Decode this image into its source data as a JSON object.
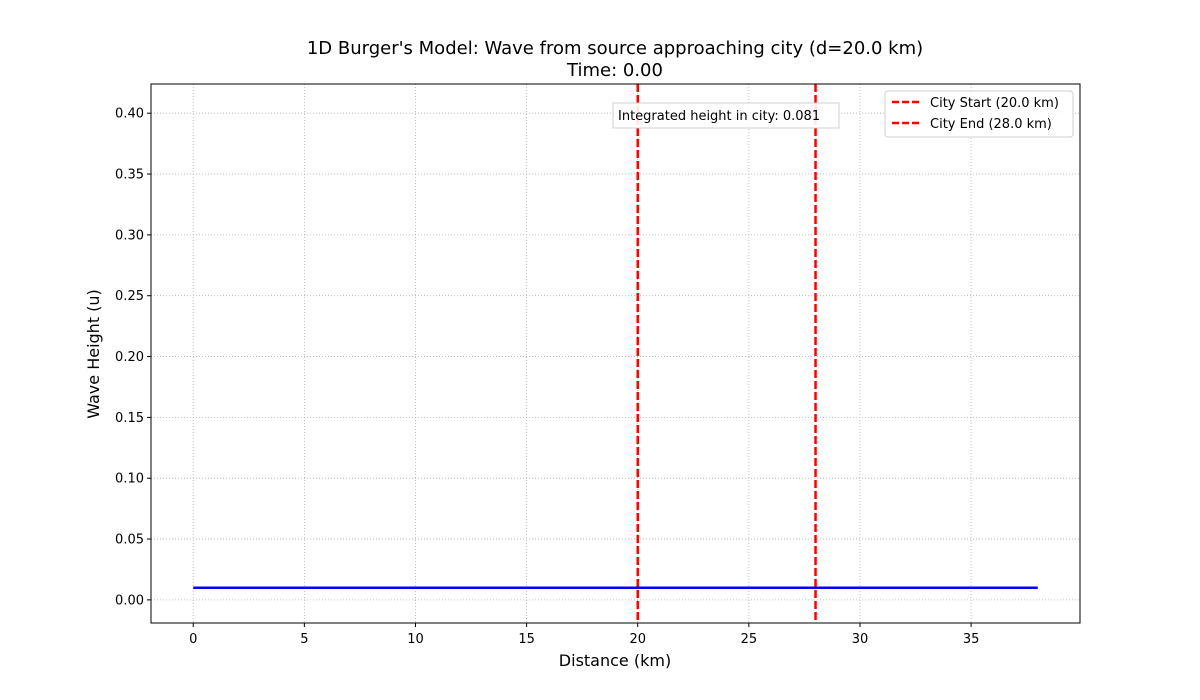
{
  "chart_data": {
    "type": "line",
    "title": "1D Burger's Model: Wave from source approaching city (d=20.0 km)",
    "subtitle": "Time: 0.00",
    "xlabel": "Distance (km)",
    "ylabel": "Wave Height (u)",
    "xlim": [
      -1.9,
      39.9
    ],
    "ylim": [
      -0.019,
      0.424
    ],
    "x_ticks": [
      0,
      5,
      10,
      15,
      20,
      25,
      30,
      35
    ],
    "x_tick_labels": [
      "0",
      "5",
      "10",
      "15",
      "20",
      "25",
      "30",
      "35"
    ],
    "y_ticks": [
      0.0,
      0.05,
      0.1,
      0.15,
      0.2,
      0.25,
      0.3,
      0.35,
      0.4
    ],
    "y_tick_labels": [
      "0.00",
      "0.05",
      "0.10",
      "0.15",
      "0.20",
      "0.25",
      "0.30",
      "0.35",
      "0.40"
    ],
    "grid": true,
    "legend_position": "top-right",
    "series": [
      {
        "x": [
          0,
          38
        ],
        "values": [
          0.01,
          0.01
        ],
        "color": "#0000ff"
      }
    ],
    "vertical_lines": [
      {
        "name": "City Start (20.0 km)",
        "x": 20.0,
        "color": "#ff0000",
        "style": "dashed"
      },
      {
        "name": "City End (28.0 km)",
        "x": 28.0,
        "color": "#ff0000",
        "style": "dashed"
      }
    ],
    "annotation": {
      "text": "Integrated height in city: 0.081"
    }
  }
}
